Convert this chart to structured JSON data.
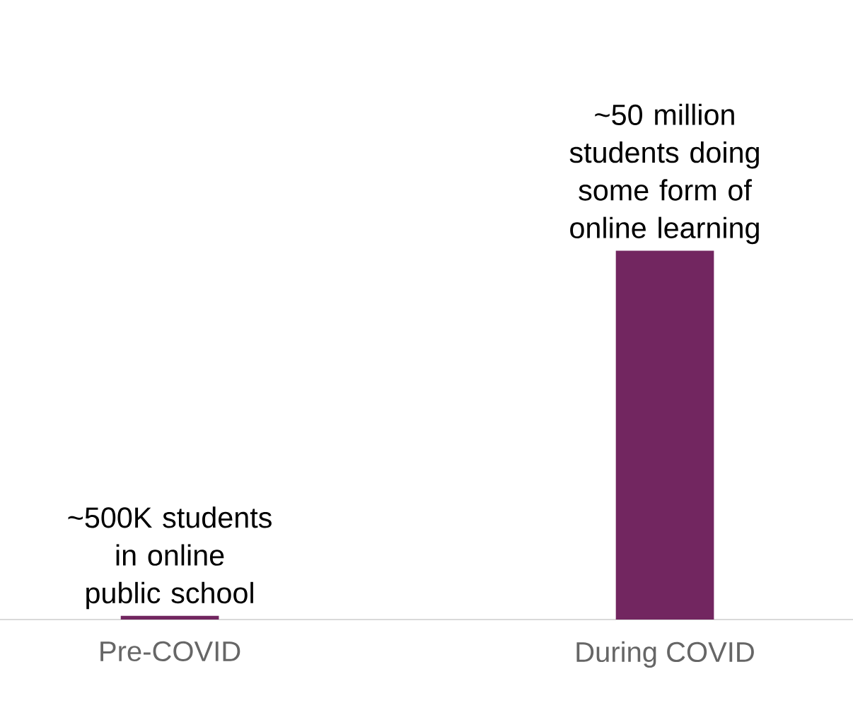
{
  "chart_data": {
    "type": "bar",
    "categories": [
      "Pre-COVID",
      "During COVID"
    ],
    "values": [
      500000,
      50000000
    ],
    "color": "#722660",
    "value_labels": [
      "~500K students in online public school",
      "~50 million students doing some form of online learning"
    ],
    "tick_labels": "x"
  }
}
